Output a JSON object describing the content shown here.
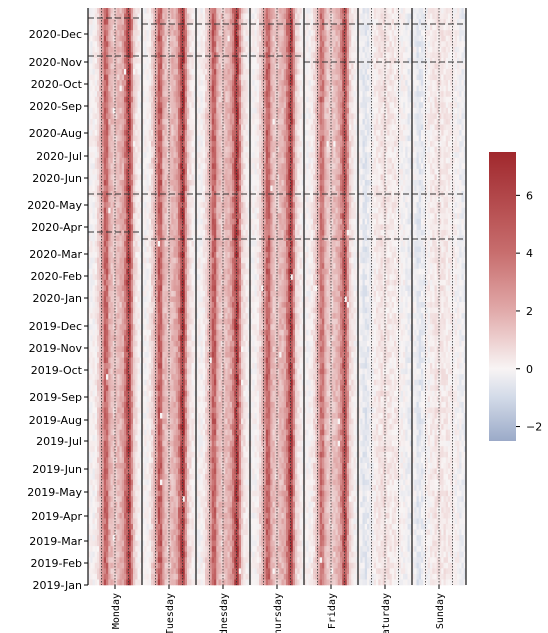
{
  "chart_data": {
    "type": "heatmap",
    "title": "",
    "xlabel": "",
    "ylabel": "",
    "x_categories": [
      "Monday",
      "Tuesday",
      "Wednesday",
      "Thursday",
      "Friday",
      "Saturday",
      "Sunday"
    ],
    "y_ticks": [
      "2019-Jan",
      "2019-Feb",
      "2019-Mar",
      "2019-Apr",
      "2019-May",
      "2019-Jun",
      "2019-Jul",
      "2019-Aug",
      "2019-Sep",
      "2019-Oct",
      "2019-Nov",
      "2019-Dec",
      "2020-Jan",
      "2020-Feb",
      "2020-Mar",
      "2020-Apr",
      "2020-May",
      "2020-Jun",
      "2020-Jul",
      "2020-Aug",
      "2020-Sep",
      "2020-Oct",
      "2020-Nov",
      "2020-Dec"
    ],
    "y_range": [
      "2019-Jan",
      "2020-Dec"
    ],
    "colorbar": {
      "ticks": [
        6,
        4,
        2,
        0,
        -2
      ],
      "range": [
        -2.5,
        7.5
      ],
      "colormap": "vlag"
    },
    "day_profile": {
      "description_hours": 24,
      "Monday": [
        0,
        0,
        0,
        0.2,
        0.8,
        1.5,
        2.5,
        4.5,
        4.2,
        2.0,
        1.5,
        1.2,
        1.4,
        1.6,
        1.8,
        2.2,
        3.5,
        5.5,
        6.0,
        3.0,
        1.0,
        0.5,
        0.2,
        0
      ],
      "Tuesday": [
        0,
        0,
        0,
        0.2,
        0.8,
        1.5,
        2.5,
        4.8,
        4.5,
        2.0,
        1.5,
        1.2,
        1.4,
        1.6,
        1.8,
        2.2,
        3.5,
        5.8,
        6.5,
        3.0,
        1.0,
        0.5,
        0.2,
        0
      ],
      "Wednesday": [
        0,
        0,
        0,
        0.2,
        0.8,
        1.5,
        2.5,
        4.6,
        4.4,
        2.0,
        1.5,
        1.2,
        1.4,
        1.6,
        1.8,
        2.2,
        3.5,
        5.6,
        6.2,
        3.0,
        1.0,
        0.5,
        0.2,
        0
      ],
      "Thursday": [
        0,
        0,
        0,
        0.2,
        0.8,
        1.5,
        2.5,
        4.5,
        4.3,
        2.0,
        1.5,
        1.2,
        1.4,
        1.6,
        1.8,
        2.2,
        3.5,
        5.5,
        6.3,
        3.0,
        1.0,
        0.5,
        0.2,
        0
      ],
      "Friday": [
        0,
        0,
        0,
        0.2,
        0.6,
        1.2,
        2.0,
        3.8,
        3.5,
        1.8,
        1.3,
        1.1,
        1.2,
        1.4,
        1.6,
        2.0,
        3.0,
        4.8,
        5.2,
        2.5,
        0.8,
        0.4,
        0.1,
        0
      ],
      "Saturday": [
        0,
        -0.3,
        -0.5,
        -0.5,
        -0.4,
        -0.2,
        0,
        0.2,
        0.3,
        0.4,
        0.5,
        0.5,
        0.4,
        0.4,
        0.3,
        0.3,
        0.3,
        0.2,
        0.1,
        0,
        0,
        -0.2,
        -0.3,
        -0.3
      ],
      "Sunday": [
        0,
        -0.3,
        -0.5,
        -0.5,
        -0.4,
        -0.2,
        0,
        0.1,
        0.2,
        0.3,
        0.4,
        0.4,
        0.4,
        0.3,
        0.3,
        0.3,
        0.2,
        0.2,
        0.1,
        0,
        0,
        -0.2,
        -0.3,
        -0.3
      ]
    }
  }
}
